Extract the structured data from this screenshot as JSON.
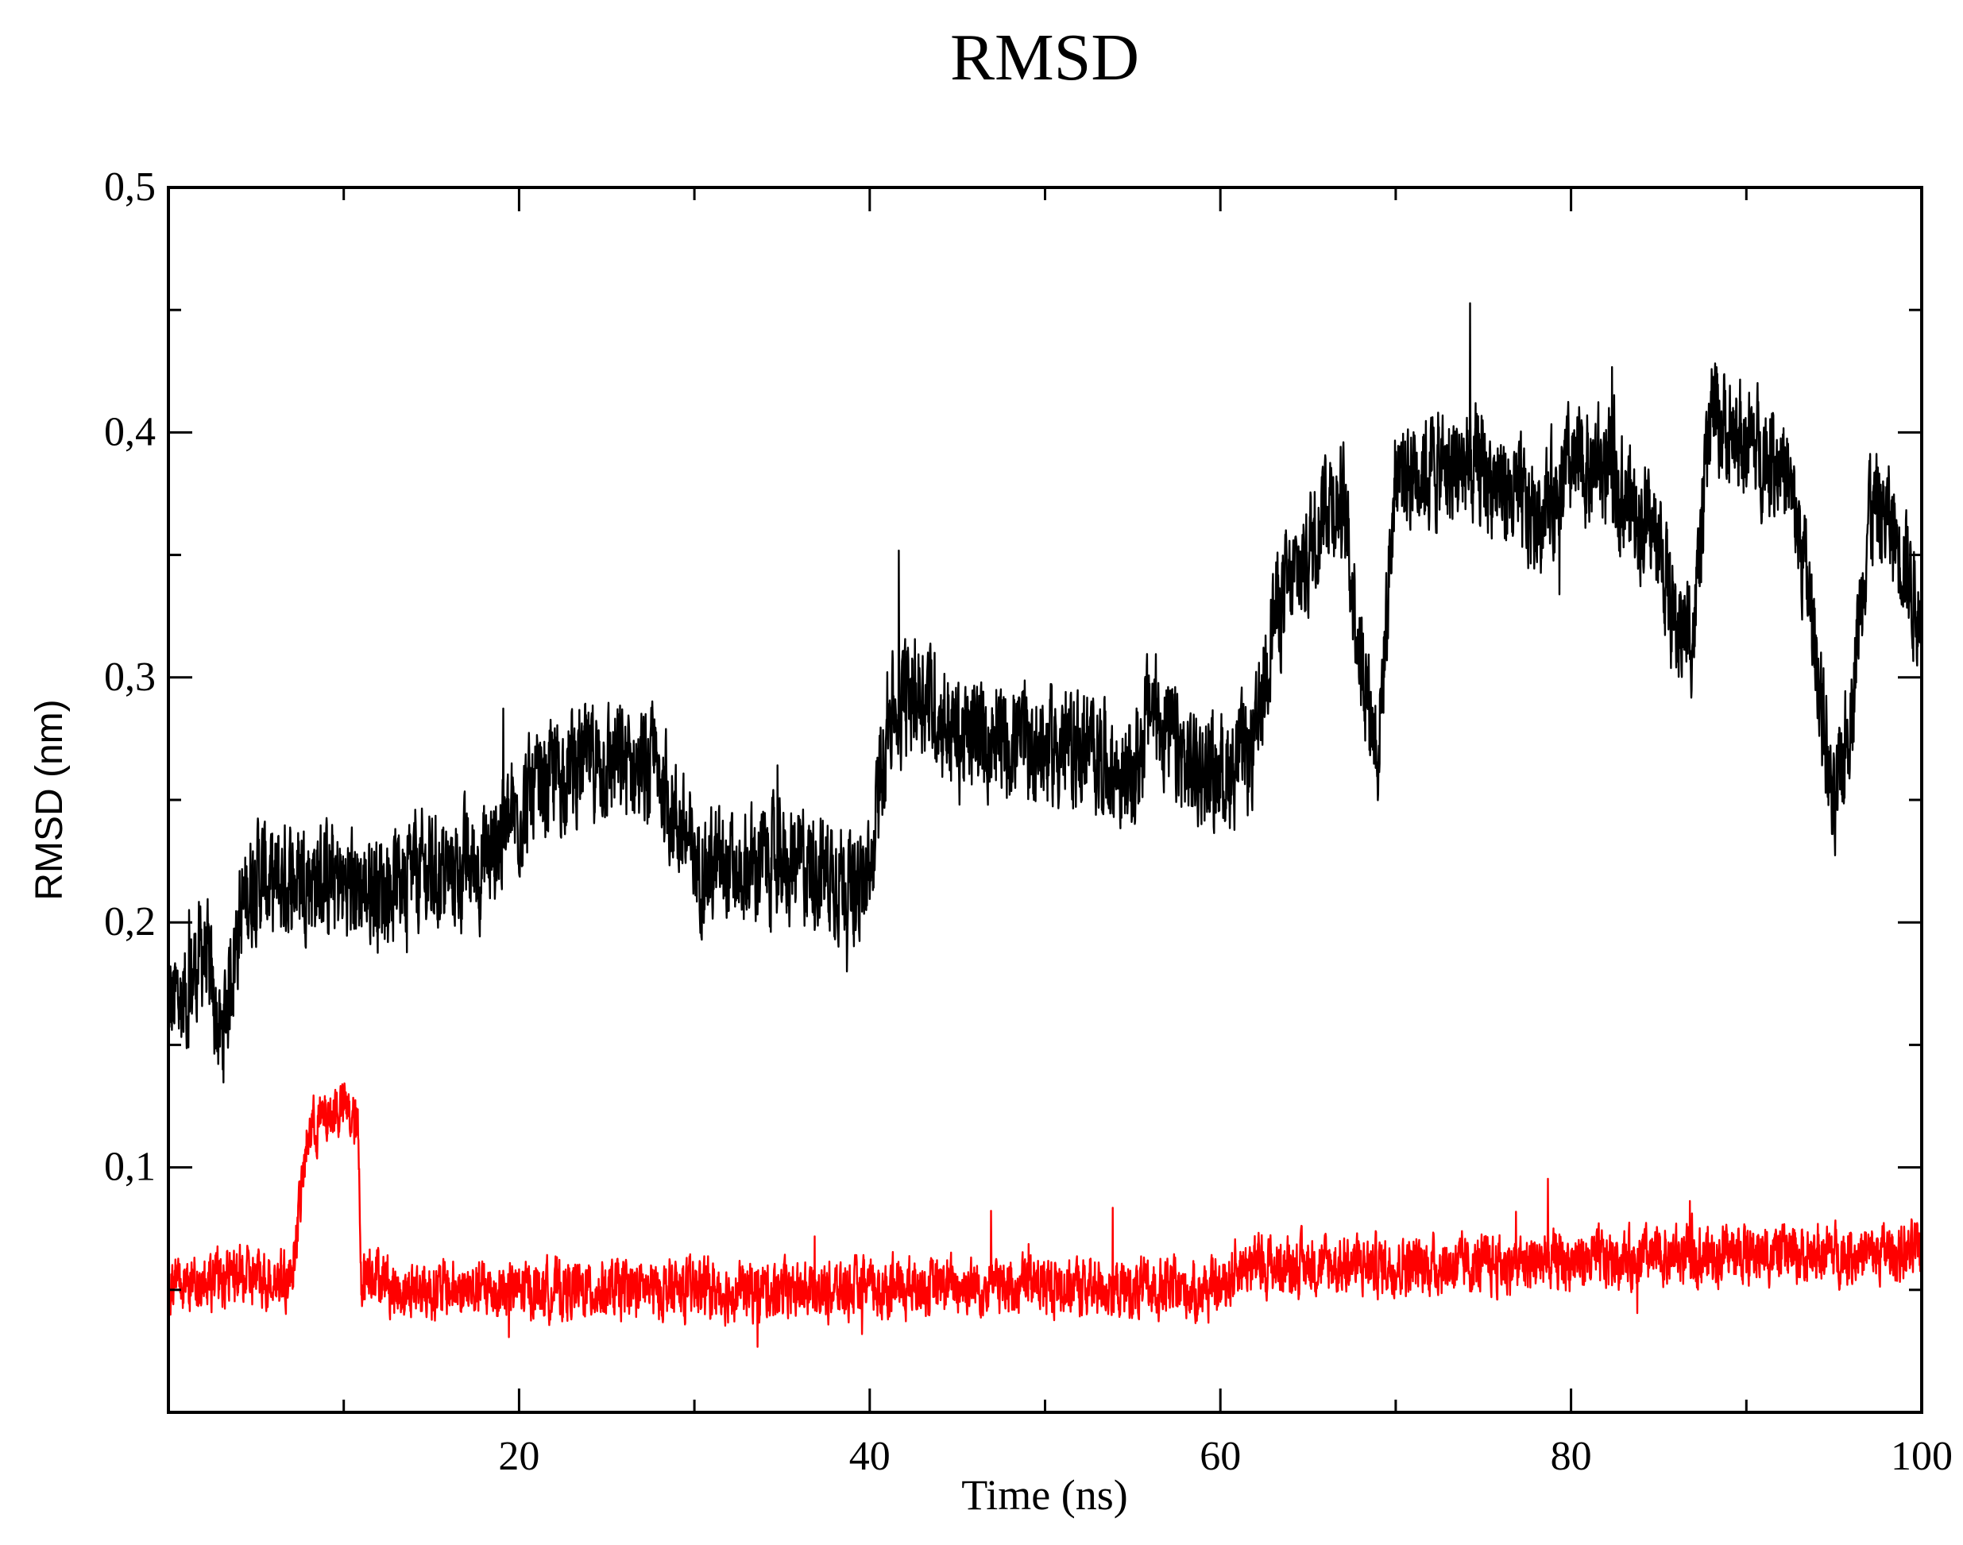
{
  "chart_data": {
    "type": "line",
    "title": "RMSD",
    "xlabel": "Time (ns)",
    "ylabel": "RMSD (nm)",
    "xlim": [
      0,
      100
    ],
    "ylim": [
      0,
      0.5
    ],
    "x_ticks": [
      {
        "value": 20,
        "label": "20"
      },
      {
        "value": 40,
        "label": "40"
      },
      {
        "value": 60,
        "label": "60"
      },
      {
        "value": 80,
        "label": "80"
      },
      {
        "value": 100,
        "label": "100"
      }
    ],
    "y_ticks": [
      {
        "value": 0.1,
        "label": "0,1"
      },
      {
        "value": 0.2,
        "label": "0,2"
      },
      {
        "value": 0.3,
        "label": "0,3"
      },
      {
        "value": 0.4,
        "label": "0,4"
      },
      {
        "value": 0.5,
        "label": "0,5"
      }
    ],
    "grid": false,
    "legend": "none",
    "series": [
      {
        "color": "#000000",
        "x": [
          0,
          1,
          2,
          3,
          4,
          5,
          6,
          8,
          10,
          12,
          14,
          16,
          18,
          20,
          22,
          24,
          26,
          28,
          30,
          32,
          34,
          36,
          38,
          40,
          41,
          43,
          45,
          47,
          50,
          53,
          55,
          56,
          58,
          60,
          62,
          63,
          65,
          66,
          67,
          68,
          69,
          70,
          72,
          75,
          78,
          80,
          82,
          84,
          85,
          86,
          87,
          88,
          90,
          92,
          93,
          94,
          95,
          96,
          97,
          98,
          99,
          100
        ],
        "y": [
          0.165,
          0.17,
          0.19,
          0.15,
          0.2,
          0.22,
          0.215,
          0.22,
          0.215,
          0.215,
          0.22,
          0.22,
          0.225,
          0.245,
          0.26,
          0.265,
          0.265,
          0.26,
          0.225,
          0.22,
          0.225,
          0.225,
          0.22,
          0.215,
          0.285,
          0.295,
          0.275,
          0.275,
          0.272,
          0.27,
          0.255,
          0.29,
          0.265,
          0.26,
          0.27,
          0.325,
          0.35,
          0.375,
          0.37,
          0.31,
          0.27,
          0.385,
          0.385,
          0.385,
          0.365,
          0.385,
          0.385,
          0.365,
          0.355,
          0.32,
          0.32,
          0.41,
          0.395,
          0.39,
          0.36,
          0.31,
          0.24,
          0.29,
          0.37,
          0.365,
          0.35,
          0.32
        ],
        "noise": 0.022
      },
      {
        "color": "#ff0000",
        "x": [
          0,
          2,
          4,
          6,
          7,
          8,
          10,
          10.8,
          11,
          11.5,
          13,
          15,
          20,
          25,
          30,
          35,
          40,
          45,
          50,
          55,
          60,
          61,
          65,
          70,
          75,
          80,
          85,
          90,
          95,
          100
        ],
        "y": [
          0.05,
          0.055,
          0.055,
          0.055,
          0.055,
          0.115,
          0.125,
          0.115,
          0.055,
          0.06,
          0.05,
          0.05,
          0.05,
          0.05,
          0.05,
          0.05,
          0.05,
          0.052,
          0.052,
          0.05,
          0.05,
          0.06,
          0.06,
          0.06,
          0.06,
          0.062,
          0.063,
          0.065,
          0.065,
          0.065
        ],
        "noise": 0.011
      }
    ]
  }
}
